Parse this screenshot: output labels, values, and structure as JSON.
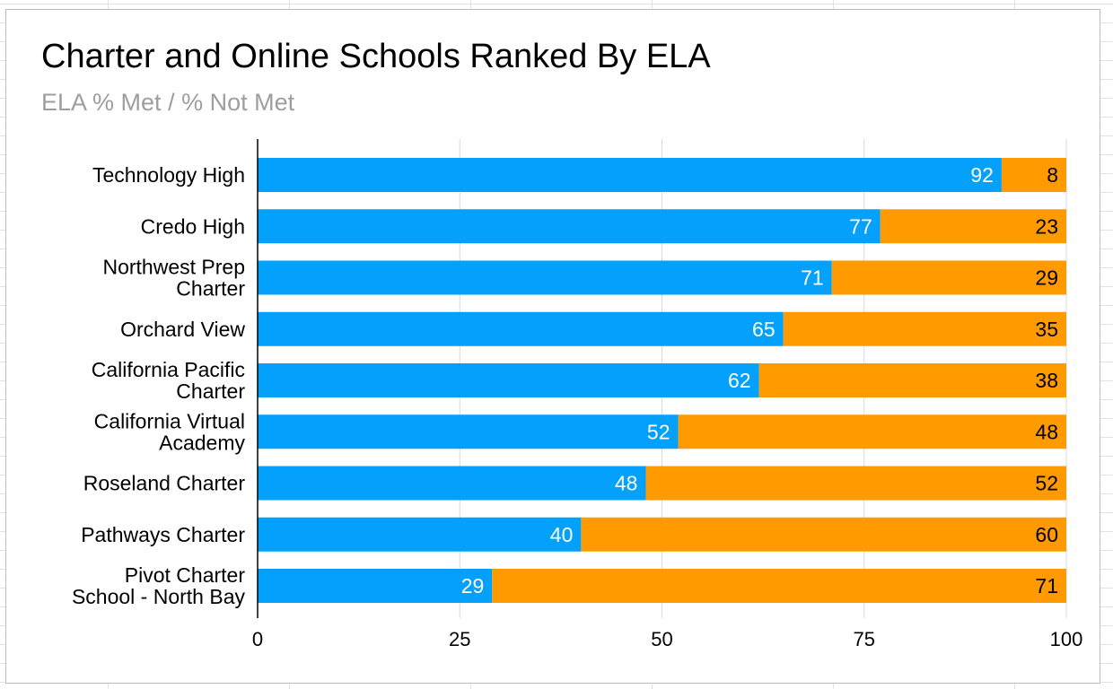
{
  "chart_data": {
    "type": "bar",
    "orientation": "horizontal",
    "stacked": true,
    "title": "Charter and Online Schools Ranked By ELA",
    "subtitle": "ELA % Met / % Not Met",
    "xlabel": "",
    "ylabel": "",
    "xlim": [
      0,
      100
    ],
    "xticks": [
      "0",
      "25",
      "50",
      "75",
      "100"
    ],
    "grid": true,
    "categories": [
      [
        "Technology High"
      ],
      [
        "Credo High"
      ],
      [
        "Northwest Prep",
        "Charter"
      ],
      [
        "Orchard View"
      ],
      [
        "California Pacific",
        "Charter"
      ],
      [
        "California Virtual",
        "Academy"
      ],
      [
        "Roseland Charter"
      ],
      [
        "Pathways Charter"
      ],
      [
        "Pivot Charter",
        "School - North Bay"
      ]
    ],
    "series": [
      {
        "name": "% Met",
        "color": "#03a1fc",
        "label_color": "#ffffff",
        "values": [
          92,
          77,
          71,
          65,
          62,
          52,
          48,
          40,
          29
        ]
      },
      {
        "name": "% Not Met",
        "color": "#ff9a00",
        "label_color": "#000000",
        "values": [
          8,
          23,
          29,
          35,
          38,
          48,
          52,
          60,
          71
        ]
      }
    ]
  }
}
